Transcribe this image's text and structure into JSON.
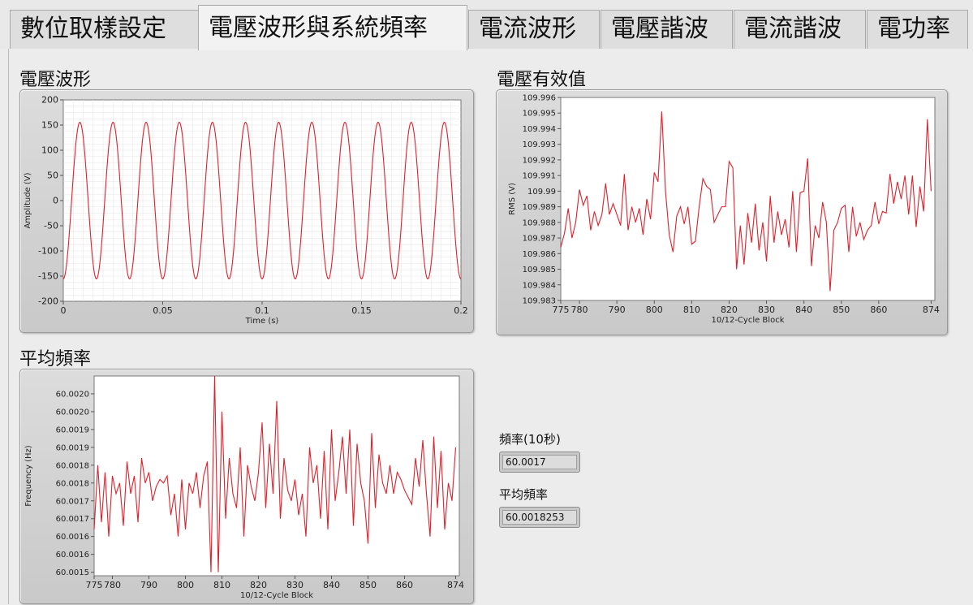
{
  "tabs": [
    {
      "label": "數位取樣設定",
      "active": false
    },
    {
      "label": "電壓波形與系統頻率",
      "active": true
    },
    {
      "label": "電流波形",
      "active": false
    },
    {
      "label": "電壓諧波",
      "active": false
    },
    {
      "label": "電流諧波",
      "active": false
    },
    {
      "label": "電功率",
      "active": false
    }
  ],
  "labels": {
    "voltage_waveform": "電壓波形",
    "voltage_rms": "電壓有效值",
    "avg_frequency": "平均頻率"
  },
  "indicators": {
    "freq10s": {
      "label": "頻率(10秒)",
      "value": "60.0017"
    },
    "avg_freq": {
      "label": "平均頻率",
      "value": "60.0018253"
    }
  },
  "colors": {
    "trace": "#e0202a",
    "plot_bg": "#ffffff",
    "grid": "#e6e6e6"
  },
  "chart_data": [
    {
      "type": "line",
      "xlabel": "Time (s)",
      "ylabel": "Amplitude (V)",
      "xlim": [
        0,
        0.2
      ],
      "ylim": [
        -200,
        200
      ],
      "xticks": [
        0,
        0.05,
        0.1,
        0.15,
        0.2
      ],
      "xtick_labels": [
        "0",
        "0.05",
        "0.1",
        "0.15",
        "0.2"
      ],
      "yticks": [
        200,
        150,
        100,
        50,
        0,
        -50,
        -100,
        -150,
        -200
      ],
      "ytick_labels": [
        "200",
        "150",
        "100",
        "50",
        "0",
        "-50",
        "-100",
        "-150",
        "-200"
      ],
      "grid": true,
      "signal": {
        "amplitude": 155.5,
        "frequency_hz": 60,
        "phase_deg": -90
      },
      "series": [
        {
          "color": "#e0202a"
        }
      ]
    },
    {
      "type": "line",
      "xlabel": "10/12-Cycle Block",
      "ylabel": "RMS (V)",
      "xlim": [
        775,
        875
      ],
      "ylim": [
        109.983,
        109.996
      ],
      "xticks": [
        775,
        780,
        790,
        800,
        810,
        820,
        830,
        840,
        850,
        860,
        874
      ],
      "xtick_labels": [
        "775",
        "780",
        "790",
        "800",
        "810",
        "820",
        "830",
        "840",
        "850",
        "860",
        "874"
      ],
      "yticks": [
        109.996,
        109.995,
        109.994,
        109.993,
        109.992,
        109.991,
        109.99,
        109.989,
        109.988,
        109.987,
        109.986,
        109.985,
        109.984,
        109.983
      ],
      "ytick_labels": [
        "109.996",
        "109.995",
        "109.994",
        "109.993",
        "109.992",
        "109.991",
        "109.99",
        "109.989",
        "109.988",
        "109.987",
        "109.986",
        "109.985",
        "109.984",
        "109.983"
      ],
      "grid": false,
      "x_start": 775,
      "y": [
        109.9864,
        109.9873,
        109.9889,
        109.987,
        109.988,
        109.9901,
        109.9891,
        109.9897,
        109.9875,
        109.9887,
        109.9878,
        109.9885,
        109.9905,
        109.9885,
        109.9892,
        109.9885,
        109.9878,
        109.9911,
        109.9875,
        109.989,
        109.988,
        109.9889,
        109.9872,
        109.9895,
        109.9882,
        109.9912,
        109.9906,
        109.9951,
        109.99,
        109.9872,
        109.9861,
        109.9884,
        109.989,
        109.9879,
        109.989,
        109.9866,
        109.9868,
        109.989,
        109.9908,
        109.9903,
        109.9901,
        109.988,
        109.9885,
        109.989,
        109.989,
        109.9919,
        109.9915,
        109.985,
        109.9878,
        109.9853,
        109.9886,
        109.9867,
        109.9892,
        109.9862,
        109.988,
        109.9855,
        109.9897,
        109.9867,
        109.9887,
        109.9872,
        109.9882,
        109.9864,
        109.99,
        109.9861,
        109.9899,
        109.99,
        109.9921,
        109.9852,
        109.9878,
        109.987,
        109.9893,
        109.988,
        109.9836,
        109.9875,
        109.988,
        109.9889,
        109.9891,
        109.9861,
        109.989,
        109.9871,
        109.988,
        109.9869,
        109.9875,
        109.9878,
        109.9893,
        109.9879,
        109.9887,
        109.9886,
        109.9911,
        109.9892,
        109.9906,
        109.9895,
        109.991,
        109.9885,
        109.991,
        109.9877,
        109.9903,
        109.9887,
        109.9946,
        109.99
      ],
      "series": [
        {
          "color": "#e0202a"
        }
      ]
    },
    {
      "type": "line",
      "xlabel": "10/12-Cycle Block",
      "ylabel": "Frequency (Hz)",
      "xlim": [
        775,
        875
      ],
      "ylim": [
        60.00149,
        60.00205
      ],
      "xticks": [
        775,
        780,
        790,
        800,
        810,
        820,
        830,
        840,
        850,
        860,
        874
      ],
      "xtick_labels": [
        "775",
        "780",
        "790",
        "800",
        "810",
        "820",
        "830",
        "840",
        "850",
        "860",
        "874"
      ],
      "ytick_values": [
        60.002,
        60.00195,
        60.0019,
        60.00185,
        60.0018,
        60.00175,
        60.0017,
        60.00165,
        60.0016,
        60.00155,
        60.0015
      ],
      "ytick_labels": [
        "60.0020",
        "60.0020",
        "60.0019",
        "60.0019",
        "60.0018",
        "60.0018",
        "60.0017",
        "60.0017",
        "60.0016",
        "60.0016",
        "60.0015"
      ],
      "grid": false,
      "x_start": 775,
      "y": [
        60.00162,
        60.0018,
        60.00164,
        60.00178,
        60.0016,
        60.00177,
        60.00172,
        60.00175,
        60.00163,
        60.00181,
        60.00172,
        60.00177,
        60.00164,
        60.00182,
        60.00175,
        60.00178,
        60.0017,
        60.00174,
        60.00176,
        60.00175,
        60.00177,
        60.00166,
        60.00172,
        60.0016,
        60.00176,
        60.00162,
        60.00175,
        60.00172,
        60.00178,
        60.00168,
        60.00177,
        60.00181,
        60.0015,
        60.00205,
        60.0015,
        60.00195,
        60.00165,
        60.00182,
        60.00172,
        60.00168,
        60.00185,
        60.0016,
        60.0018,
        60.00174,
        60.0017,
        60.00178,
        60.00192,
        60.00168,
        60.00186,
        60.00172,
        60.00198,
        60.00165,
        60.00182,
        60.00173,
        60.0017,
        60.00176,
        60.00166,
        60.00172,
        60.0016,
        60.00185,
        60.00175,
        60.0018,
        60.00165,
        60.00184,
        60.00162,
        60.0019,
        60.0017,
        60.00178,
        60.00188,
        60.00172,
        60.0019,
        60.00163,
        60.00186,
        60.00175,
        60.0017,
        60.00158,
        60.00189,
        60.00168,
        60.00183,
        60.00175,
        60.00172,
        60.0018,
        60.00172,
        60.00178,
        60.00176,
        60.00173,
        60.00171,
        60.00169,
        60.00182,
        60.00174,
        60.00187,
        60.00172,
        60.0016,
        60.00188,
        60.00168,
        60.00184,
        60.00162,
        60.00175,
        60.0017,
        60.00185
      ],
      "series": [
        {
          "color": "#e0202a"
        }
      ]
    }
  ]
}
